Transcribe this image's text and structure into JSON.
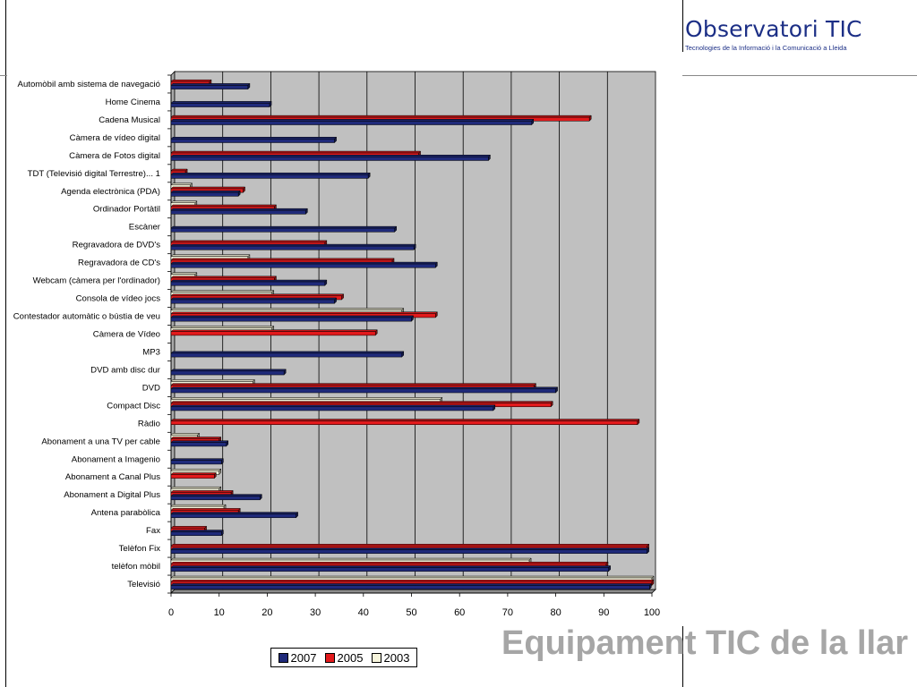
{
  "brand": {
    "name": "Observatori TIC",
    "subtitle": "Tecnologies de la Informació i la Comunicació a Lleida"
  },
  "slide_title": "Equipament TIC de la llar",
  "chart_data": {
    "type": "bar",
    "orientation": "horizontal",
    "categories": [
      "Automòbil amb sistema de navegació",
      "Home Cinema",
      "Cadena Musical",
      "Càmera de vídeo digital",
      "Càmera de Fotos digital",
      "TDT (Televisió digital Terrestre)... 1",
      "Agenda electrònica (PDA)",
      "Ordinador Portàtil",
      "Escàner",
      "Regravadora de DVD's",
      "Regravadora de CD's",
      "Webcam (càmera per l'ordinador)",
      "Consola de vídeo jocs",
      "Contestador automàtic o bústia de veu",
      "Càmera de Vídeo",
      "MP3",
      "DVD amb disc dur",
      "DVD",
      "Compact Disc",
      "Ràdio",
      "Abonament a una TV per cable",
      "Abonament a Imagenio",
      "Abonament a Canal Plus",
      "Abonament a Digital Plus",
      "Antena parabòlica",
      "Fax",
      "Telèfon Fix",
      "telèfon mòbil",
      "Televisió"
    ],
    "series": [
      {
        "name": "2007",
        "color": "#1f2a7a",
        "values": [
          16,
          20.5,
          75,
          34,
          66,
          41,
          14,
          28,
          46.5,
          50.5,
          55,
          32,
          34,
          50,
          0,
          48,
          23.5,
          80,
          67,
          0,
          11.5,
          10.5,
          0,
          18.5,
          26,
          10.5,
          99,
          91,
          99.5
        ]
      },
      {
        "name": "2005",
        "color": "#e31a1c",
        "values": [
          8,
          0,
          87,
          0,
          51.5,
          3,
          15,
          21.5,
          0,
          32,
          46,
          21.5,
          35.5,
          55,
          42.5,
          0,
          0,
          75.5,
          79,
          97,
          10,
          0,
          9,
          12.5,
          14,
          7,
          99,
          90.5,
          100
        ]
      },
      {
        "name": "2003",
        "color": "#f7f5dc",
        "values": [
          0,
          0,
          0,
          0,
          0,
          0,
          4,
          5,
          0,
          0,
          16,
          5,
          21,
          48,
          21,
          0,
          0,
          17,
          56,
          0,
          5.5,
          0,
          10,
          10,
          11,
          0,
          0,
          74.5,
          100
        ]
      }
    ],
    "x_ticks": [
      "0",
      "10",
      "20",
      "30",
      "40",
      "50",
      "60",
      "70",
      "80",
      "90",
      "100"
    ],
    "xlim": [
      0,
      100
    ],
    "grid": true,
    "legend": "bottom"
  }
}
